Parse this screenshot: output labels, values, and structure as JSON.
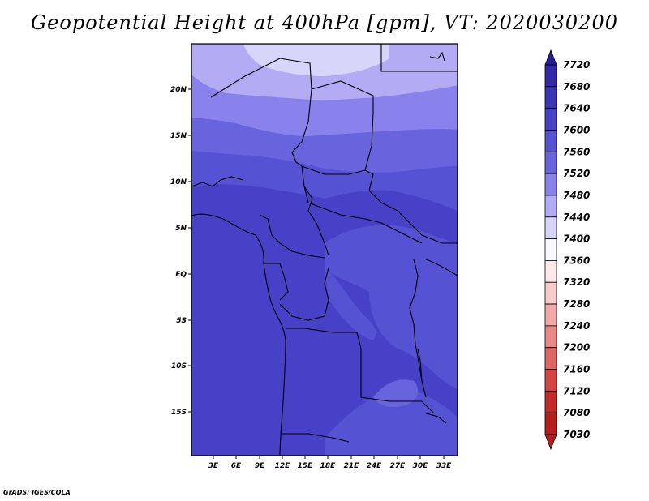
{
  "title": "Geopotential Height at 400hPa [gpm], VT: 2020030200",
  "credit": "GrADS: IGES/COLA",
  "lat_ticks": [
    "20N",
    "15N",
    "10N",
    "5N",
    "EQ",
    "5S",
    "10S",
    "15S"
  ],
  "lon_ticks": [
    "3E",
    "6E",
    "9E",
    "12E",
    "15E",
    "18E",
    "21E",
    "24E",
    "27E",
    "30E",
    "33E"
  ],
  "colorbar": {
    "labels": [
      "7720",
      "7680",
      "7640",
      "7600",
      "7560",
      "7520",
      "7480",
      "7440",
      "7400",
      "7360",
      "7320",
      "7280",
      "7240",
      "7200",
      "7160",
      "7120",
      "7080",
      "7030"
    ],
    "colors": [
      "#2b1a96",
      "#3328a8",
      "#3b34b6",
      "#4641c7",
      "#5552d3",
      "#6864de",
      "#8a82ec",
      "#b3acf4",
      "#d8d5fa",
      "#f8f8ff",
      "#fde9e9",
      "#f8cbcb",
      "#f2a9a9",
      "#ea8787",
      "#e06565",
      "#d54545",
      "#c42a2a",
      "#b81d1d"
    ]
  },
  "map_fills": {
    "band_7520": "#8a82ec",
    "band_7560": "#6864de",
    "band_7600": "#5552d3",
    "band_7640": "#4641c7",
    "band_7480": "#b3acf4",
    "band_7440": "#d8d5fa"
  }
}
